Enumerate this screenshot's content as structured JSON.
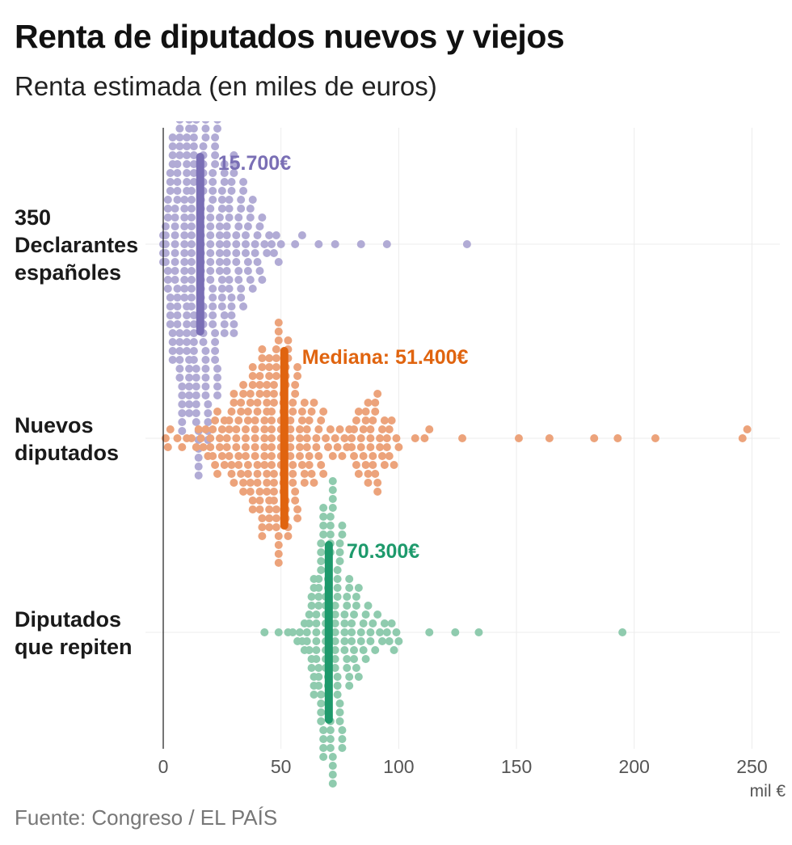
{
  "title": "Renta de diputados nuevos y viejos",
  "subtitle": "Renta estimada (en miles de euros)",
  "source": "Fuente: Congreso / EL PAÍS",
  "chart_data": {
    "type": "scatter",
    "subtype": "beeswarm",
    "title": "Renta de diputados nuevos y viejos",
    "subtitle": "Renta estimada (en miles de euros)",
    "x_unit": "mil €",
    "xlim": [
      0,
      255
    ],
    "x_ticks": [
      0,
      50,
      100,
      150,
      200,
      250
    ],
    "grid": true,
    "series": [
      {
        "name": "350 Declarantes españoles",
        "label_lines": [
          "350",
          "Declarantes",
          "españoles"
        ],
        "color": "#b1abd5",
        "median_color": "#7a6fb5",
        "median": 15.7,
        "median_label": "15.700€",
        "outliers": [
          56,
          59,
          66,
          73,
          84,
          95,
          129
        ],
        "values": [
          0,
          0,
          0,
          0,
          1,
          1,
          1,
          1,
          1,
          2,
          2,
          2,
          2,
          2,
          2,
          3,
          3,
          3,
          3,
          3,
          3,
          3,
          4,
          4,
          4,
          4,
          4,
          4,
          4,
          4,
          5,
          5,
          5,
          5,
          5,
          5,
          5,
          5,
          5,
          6,
          6,
          6,
          6,
          6,
          6,
          6,
          6,
          6,
          6,
          7,
          7,
          7,
          7,
          7,
          7,
          7,
          7,
          7,
          7,
          7,
          8,
          8,
          8,
          8,
          8,
          8,
          8,
          8,
          8,
          8,
          8,
          8,
          9,
          9,
          9,
          9,
          9,
          9,
          9,
          9,
          9,
          9,
          9,
          9,
          10,
          10,
          10,
          10,
          10,
          10,
          10,
          10,
          10,
          10,
          10,
          10,
          10,
          11,
          11,
          11,
          11,
          11,
          11,
          11,
          11,
          11,
          11,
          11,
          11,
          11,
          11,
          12,
          12,
          12,
          12,
          12,
          12,
          12,
          12,
          12,
          12,
          12,
          12,
          12,
          12,
          13,
          13,
          13,
          13,
          13,
          13,
          13,
          13,
          13,
          13,
          13,
          13,
          13,
          14,
          14,
          14,
          14,
          14,
          14,
          14,
          14,
          14,
          14,
          14,
          14,
          14,
          15,
          15,
          15,
          15,
          15,
          15,
          15,
          15,
          15,
          15,
          15,
          15,
          16,
          16,
          16,
          16,
          16,
          16,
          16,
          16,
          16,
          16,
          16,
          16,
          17,
          17,
          17,
          17,
          17,
          17,
          17,
          17,
          17,
          17,
          17,
          18,
          18,
          18,
          18,
          18,
          18,
          18,
          18,
          18,
          18,
          18,
          19,
          19,
          19,
          19,
          19,
          19,
          19,
          19,
          19,
          19,
          20,
          20,
          20,
          20,
          20,
          20,
          20,
          20,
          20,
          21,
          21,
          21,
          21,
          21,
          21,
          21,
          21,
          21,
          22,
          22,
          22,
          22,
          22,
          22,
          22,
          22,
          23,
          23,
          23,
          23,
          23,
          23,
          23,
          23,
          24,
          24,
          24,
          24,
          24,
          24,
          24,
          25,
          25,
          25,
          25,
          25,
          25,
          25,
          26,
          26,
          26,
          26,
          26,
          26,
          27,
          27,
          27,
          27,
          27,
          27,
          28,
          28,
          28,
          28,
          28,
          29,
          29,
          29,
          29,
          29,
          30,
          30,
          30,
          30,
          30,
          31,
          31,
          31,
          31,
          32,
          32,
          32,
          32,
          33,
          33,
          33,
          33,
          34,
          34,
          34,
          35,
          35,
          35,
          36,
          36,
          36,
          37,
          37,
          37,
          38,
          38,
          39,
          39,
          40,
          40,
          41,
          41,
          42,
          42,
          43,
          44,
          45,
          46,
          47,
          48,
          49,
          50
        ]
      },
      {
        "name": "Nuevos diputados",
        "label_lines": [
          "Nuevos",
          "diputados"
        ],
        "color": "#eca37b",
        "median_color": "#e0640f",
        "median": 51.4,
        "median_label": "Mediana: 51.400€",
        "outliers": [
          107,
          111,
          113,
          127,
          151,
          164,
          183,
          193,
          209,
          246,
          248
        ],
        "values": [
          1,
          2,
          3,
          6,
          8,
          10,
          12,
          14,
          15,
          16,
          17,
          18,
          19,
          20,
          20,
          21,
          21,
          22,
          22,
          23,
          23,
          24,
          24,
          25,
          25,
          26,
          26,
          27,
          27,
          28,
          28,
          28,
          29,
          29,
          29,
          30,
          30,
          30,
          31,
          31,
          31,
          32,
          32,
          32,
          33,
          33,
          33,
          34,
          34,
          34,
          34,
          35,
          35,
          35,
          35,
          36,
          36,
          36,
          36,
          37,
          37,
          37,
          37,
          38,
          38,
          38,
          38,
          38,
          39,
          39,
          39,
          39,
          39,
          40,
          40,
          40,
          40,
          40,
          41,
          41,
          41,
          41,
          41,
          41,
          42,
          42,
          42,
          42,
          42,
          42,
          43,
          43,
          43,
          43,
          43,
          43,
          44,
          44,
          44,
          44,
          44,
          44,
          44,
          45,
          45,
          45,
          45,
          45,
          45,
          45,
          46,
          46,
          46,
          46,
          46,
          46,
          46,
          47,
          47,
          47,
          47,
          47,
          47,
          47,
          48,
          48,
          48,
          48,
          48,
          48,
          48,
          49,
          49,
          49,
          49,
          49,
          49,
          49,
          50,
          50,
          50,
          50,
          50,
          50,
          51,
          51,
          51,
          51,
          51,
          51,
          52,
          52,
          52,
          52,
          52,
          52,
          53,
          53,
          53,
          53,
          53,
          54,
          54,
          54,
          54,
          54,
          55,
          55,
          55,
          55,
          55,
          56,
          56,
          56,
          56,
          57,
          57,
          57,
          57,
          58,
          58,
          58,
          58,
          59,
          59,
          59,
          60,
          60,
          60,
          61,
          61,
          61,
          62,
          62,
          62,
          63,
          63,
          64,
          64,
          65,
          65,
          66,
          66,
          67,
          67,
          68,
          68,
          69,
          70,
          71,
          72,
          73,
          74,
          75,
          76,
          77,
          78,
          79,
          80,
          80,
          81,
          81,
          82,
          82,
          83,
          83,
          84,
          84,
          85,
          85,
          86,
          86,
          86,
          87,
          87,
          87,
          88,
          88,
          88,
          89,
          89,
          89,
          90,
          90,
          90,
          91,
          91,
          91,
          92,
          92,
          93,
          93,
          94,
          94,
          95,
          95,
          96,
          96,
          97,
          98,
          99,
          100
        ]
      },
      {
        "name": "Diputados que repiten",
        "label_lines": [
          "Diputados",
          "que repiten"
        ],
        "color": "#8fcbae",
        "median_color": "#1e9a6c",
        "median": 70.3,
        "median_label": "70.300€",
        "outliers": [
          43,
          49,
          113,
          124,
          134,
          195
        ],
        "values": [
          53,
          55,
          57,
          58,
          59,
          60,
          60,
          61,
          61,
          62,
          62,
          62,
          63,
          63,
          63,
          63,
          64,
          64,
          64,
          64,
          64,
          65,
          65,
          65,
          65,
          65,
          65,
          66,
          66,
          66,
          66,
          66,
          66,
          66,
          67,
          67,
          67,
          67,
          67,
          67,
          67,
          67,
          68,
          68,
          68,
          68,
          68,
          68,
          68,
          68,
          69,
          69,
          69,
          69,
          69,
          69,
          69,
          69,
          69,
          70,
          70,
          70,
          70,
          70,
          70,
          70,
          70,
          70,
          71,
          71,
          71,
          71,
          71,
          71,
          71,
          71,
          71,
          72,
          72,
          72,
          72,
          72,
          72,
          72,
          72,
          73,
          73,
          73,
          73,
          73,
          73,
          73,
          73,
          74,
          74,
          74,
          74,
          74,
          74,
          74,
          75,
          75,
          75,
          75,
          75,
          75,
          76,
          76,
          76,
          76,
          76,
          77,
          77,
          77,
          77,
          77,
          78,
          78,
          78,
          78,
          79,
          79,
          79,
          79,
          80,
          80,
          80,
          81,
          81,
          81,
          82,
          82,
          82,
          83,
          83,
          84,
          84,
          85,
          85,
          86,
          86,
          87,
          88,
          88,
          89,
          90,
          91,
          92,
          93,
          94,
          95,
          96,
          97,
          98,
          99,
          100
        ]
      }
    ]
  }
}
